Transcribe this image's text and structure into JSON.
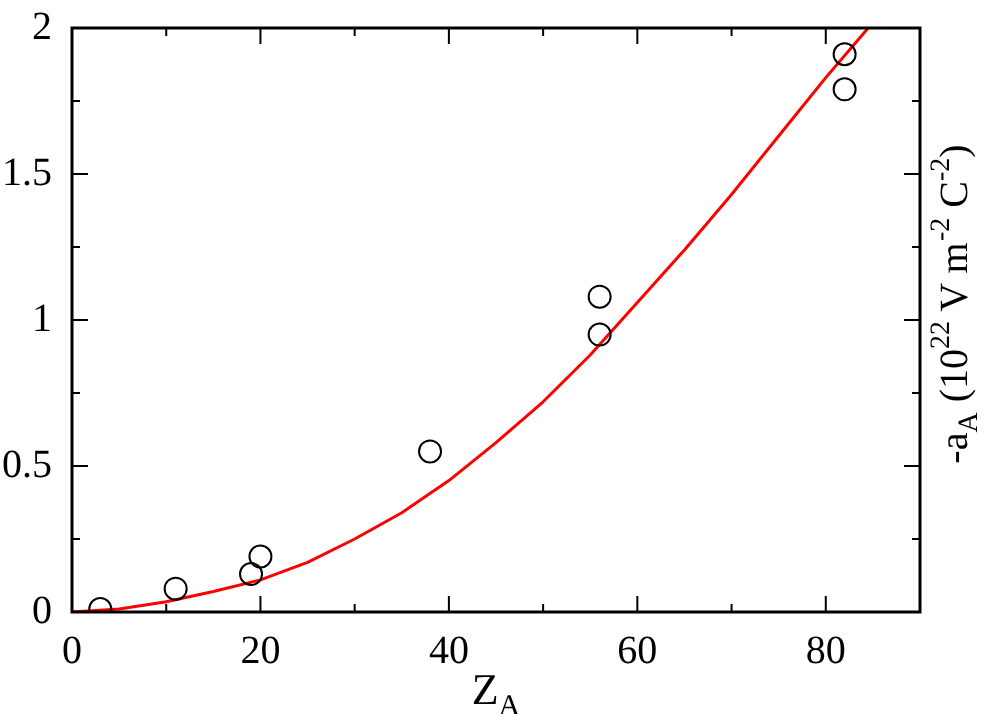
{
  "chart_data": {
    "type": "scatter",
    "xlabel": "Z$_{A}$",
    "y2label": "-a$_{A}$ (10$^{22}$ V m$^{-2}$ C$^{-2}$)",
    "xlim": [
      0,
      90
    ],
    "ylim": [
      0,
      2
    ],
    "xticks": [
      0,
      {
        "value": 10,
        "label": null
      },
      20,
      {
        "value": 30,
        "label": null
      },
      40,
      {
        "value": 50,
        "label": null
      },
      60,
      {
        "value": 70,
        "label": null
      },
      80
    ],
    "yticks": [
      0,
      {
        "value": 0.25,
        "label": null
      },
      0.5,
      {
        "value": 0.75,
        "label": null
      },
      1,
      {
        "value": 1.25,
        "label": null
      },
      1.5,
      {
        "value": 1.75,
        "label": null
      },
      2
    ],
    "marker": "circle",
    "grid": false,
    "legend": false,
    "series": [
      {
        "color": "#000000",
        "x": [
          3,
          11,
          19,
          20,
          38,
          56,
          56,
          82,
          82
        ],
        "values": [
          0.01,
          0.08,
          0.13,
          0.19,
          0.55,
          1.08,
          0.95,
          1.91,
          1.79
        ]
      },
      {
        "type": "line",
        "color": "#ff0000",
        "marker": "none",
        "x": [
          0,
          5,
          10,
          15,
          20,
          25,
          30,
          35,
          40,
          45,
          50,
          55,
          60,
          65,
          70,
          75,
          80,
          84.5
        ],
        "values": [
          0,
          0.01,
          0.035,
          0.07,
          0.11,
          0.17,
          0.25,
          0.34,
          0.45,
          0.58,
          0.72,
          0.88,
          1.06,
          1.24,
          1.43,
          1.63,
          1.83,
          2.0
        ]
      }
    ]
  }
}
